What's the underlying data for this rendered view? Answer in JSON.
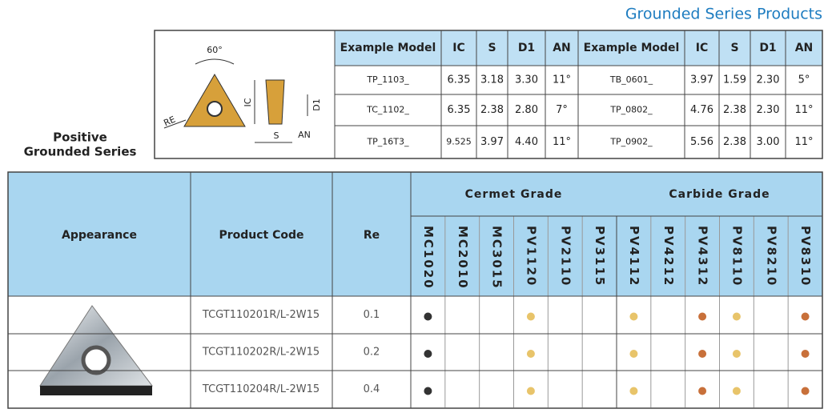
{
  "header": {
    "title": "Grounded Series Products"
  },
  "side_label": [
    "Positive",
    "Grounded Series"
  ],
  "diagram": {
    "angle": "60°",
    "re": "RE",
    "ic": "IC",
    "d1": "D1",
    "s": "S",
    "an": "AN"
  },
  "spec_table": {
    "headers": [
      "Example Model",
      "IC",
      "S",
      "D1",
      "AN",
      "Example Model",
      "IC",
      "S",
      "D1",
      "AN"
    ],
    "rows": [
      [
        "TP_1103_",
        "6.35",
        "3.18",
        "3.30",
        "11°",
        "TB_0601_",
        "3.97",
        "1.59",
        "2.30",
        "5°"
      ],
      [
        "TC_1102_",
        "6.35",
        "2.38",
        "2.80",
        "7°",
        "TP_0802_",
        "4.76",
        "2.38",
        "2.30",
        "11°"
      ],
      [
        "TP_16T3_",
        "9.525",
        "3.97",
        "4.40",
        "11°",
        "TP_0902_",
        "5.56",
        "2.38",
        "3.00",
        "11°"
      ]
    ]
  },
  "grade_table": {
    "headers": [
      "Appearance",
      "Product Code",
      "Re"
    ],
    "groups": [
      {
        "name": "Cermet Grade",
        "span": 6
      },
      {
        "name": "Carbide Grade",
        "span": 6
      }
    ],
    "grades": [
      "MC1020",
      "MC2010",
      "MC3015",
      "PV1120",
      "PV2110",
      "PV3115",
      "PV4112",
      "PV4212",
      "PV4312",
      "PV8110",
      "PV8210",
      "PV8310"
    ],
    "rows": [
      {
        "code": "TCGT110201R/L-2W15",
        "re": "0.1",
        "dots": [
          "#333333",
          null,
          null,
          "#e8c46a",
          null,
          null,
          "#e8c46a",
          null,
          "#c8703a",
          "#e8c46a",
          null,
          "#c8703a"
        ]
      },
      {
        "code": "TCGT110202R/L-2W15",
        "re": "0.2",
        "dots": [
          "#333333",
          null,
          null,
          "#e8c46a",
          null,
          null,
          "#e8c46a",
          null,
          "#c8703a",
          "#e8c46a",
          null,
          "#c8703a"
        ]
      },
      {
        "code": "TCGT110204R/L-2W15",
        "re": "0.4",
        "dots": [
          "#333333",
          null,
          null,
          "#e8c46a",
          null,
          null,
          "#e8c46a",
          null,
          "#c8703a",
          "#e8c46a",
          null,
          "#c8703a"
        ]
      }
    ]
  }
}
